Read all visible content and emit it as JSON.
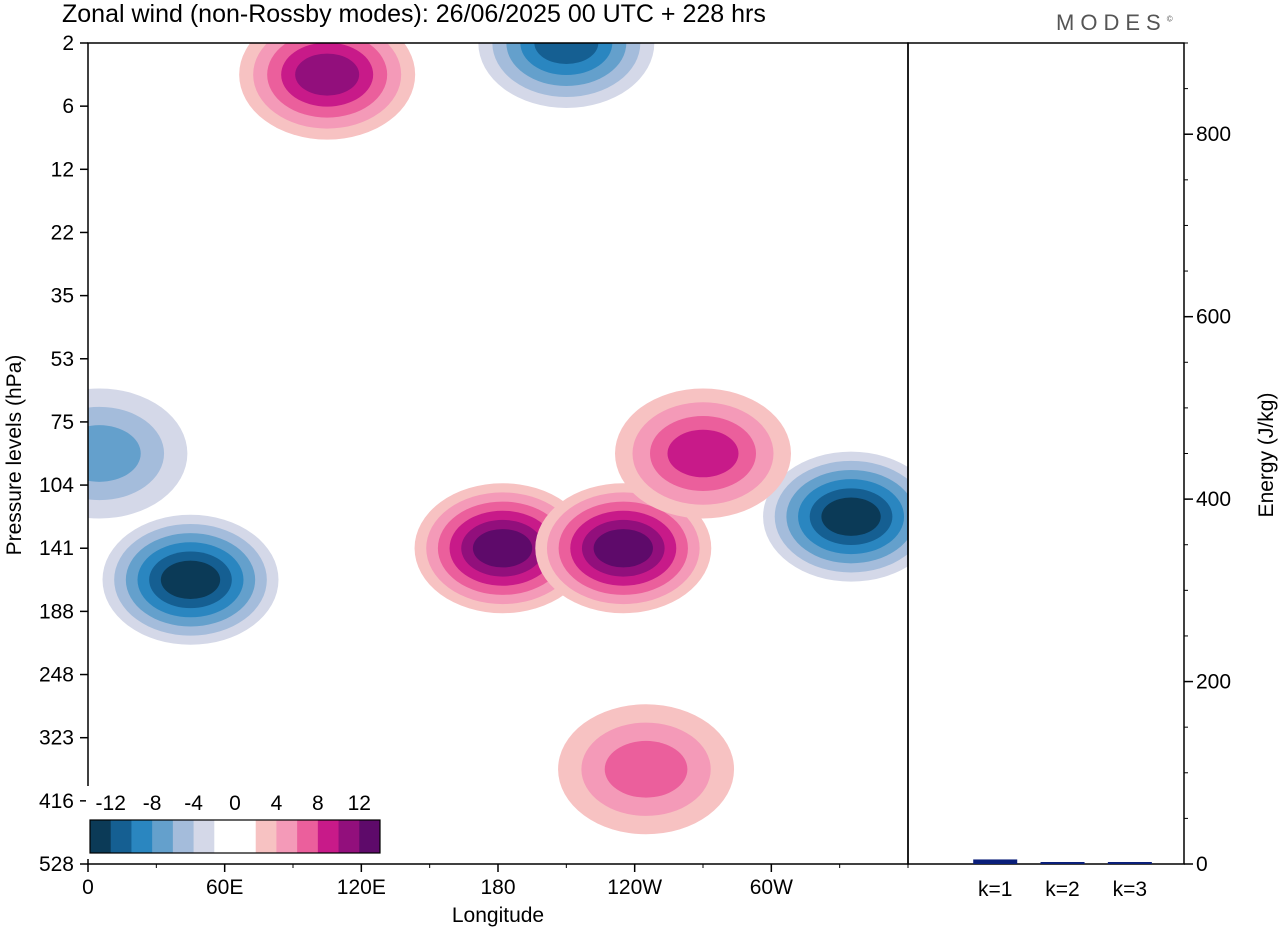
{
  "title": "Zonal wind (non-Rossby modes):  26/06/2025  00 UTC  + 228 hrs",
  "logo": "MODES",
  "logo_mark": "©",
  "chart_data": [
    {
      "type": "heatmap",
      "title": "Zonal wind (non-Rossby modes):  26/06/2025  00 UTC  + 228 hrs",
      "xlabel": "Longitude",
      "ylabel": "Pressure levels (hPa)",
      "x_ticks": [
        "0",
        "60E",
        "120E",
        "180",
        "120W",
        "60W"
      ],
      "x_tick_values": [
        0,
        60,
        120,
        180,
        240,
        300
      ],
      "xlim": [
        0,
        360
      ],
      "y_ticks": [
        "2",
        "6",
        "12",
        "22",
        "35",
        "53",
        "75",
        "104",
        "141",
        "188",
        "248",
        "323",
        "416",
        "528"
      ],
      "y_scale": "pressure levels (inverted)",
      "colorbar": {
        "labels": [
          "-12",
          "-8",
          "-4",
          "0",
          "4",
          "8",
          "12"
        ],
        "colors": [
          "#0b3a57",
          "#155f92",
          "#2a86c0",
          "#64a0cc",
          "#a4bcdb",
          "#d4d8e8",
          "#ffffff",
          "#ffffff",
          "#f7c2c2",
          "#f49ab8",
          "#eb5f9c",
          "#c81a89",
          "#920f7c",
          "#5e0a6a"
        ]
      },
      "features": [
        {
          "sign": "negative",
          "lon": 45,
          "level": "141-188",
          "peak": -12
        },
        {
          "sign": "negative",
          "lon": 335,
          "level": "104-141",
          "peak": -12
        },
        {
          "sign": "negative",
          "lon": 5,
          "level": "75-104",
          "peak": -6
        },
        {
          "sign": "negative",
          "lon": 210,
          "level": "2",
          "peak": -10
        },
        {
          "sign": "positive",
          "lon": 182,
          "level": "141",
          "peak": 14
        },
        {
          "sign": "positive",
          "lon": 235,
          "level": "141",
          "peak": 12
        },
        {
          "sign": "positive",
          "lon": 270,
          "level": "75-104",
          "peak": 8
        },
        {
          "sign": "positive",
          "lon": 105,
          "level": "2-6",
          "peak": 10
        },
        {
          "sign": "positive",
          "lon": 245,
          "level": "323-416",
          "peak": 6
        }
      ]
    },
    {
      "type": "bar",
      "ylabel": "Energy (J/kg)",
      "categories": [
        "k=1",
        "k=2",
        "k=3"
      ],
      "values": [
        5,
        2,
        1
      ],
      "ylim": [
        0,
        900
      ],
      "y_ticks": [
        0,
        200,
        400,
        600,
        800
      ],
      "bar_color": "#0a1f7a"
    }
  ]
}
